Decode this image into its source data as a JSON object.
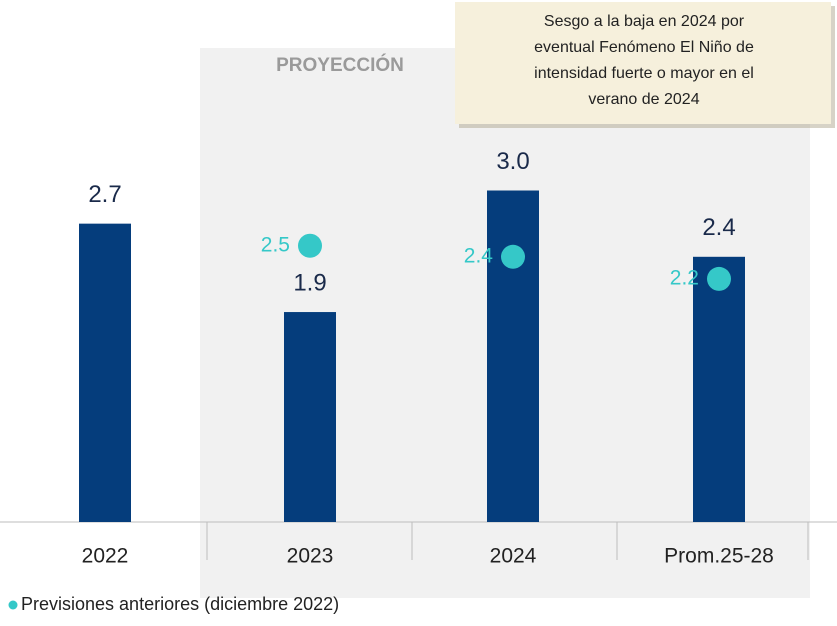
{
  "chart_data": {
    "type": "bar",
    "categories": [
      "2022",
      "2023",
      "2024",
      "Prom.25-28"
    ],
    "values": [
      2.7,
      1.9,
      3.0,
      2.4
    ],
    "value_labels": [
      "2.7",
      "1.9",
      "3.0",
      "2.4"
    ],
    "color": "#053d7c",
    "series": [
      {
        "name": "Previsiones anteriores (diciembre 2022)",
        "color": "#35c8c8",
        "values": [
          null,
          2.5,
          2.4,
          2.2
        ]
      }
    ],
    "region_label": "PROYECCIÓN",
    "annotation": [
      "Sesgo a la baja en 2024 por",
      "eventual Fenómeno El Niño de",
      "intensidad fuerte o mayor en el",
      "verano de 2024"
    ]
  }
}
